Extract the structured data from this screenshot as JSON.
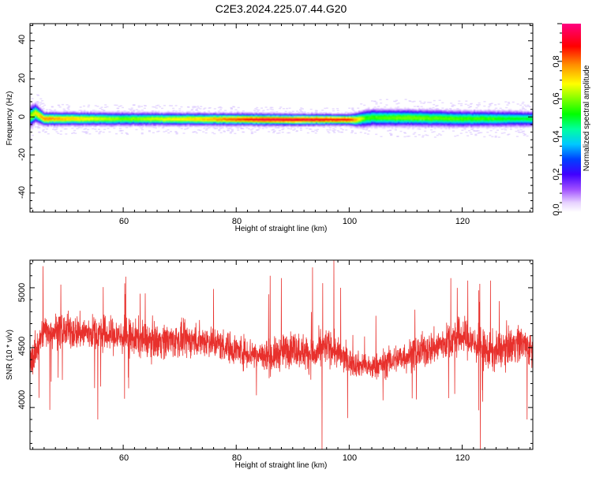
{
  "title": "C2E3.2024.225.07.44.G20",
  "chart_data": [
    {
      "type": "heatmap",
      "xlabel": "Height of straight line (km)",
      "ylabel": "Frequency (Hz)",
      "xlim": [
        43.5,
        132.5
      ],
      "ylim": [
        -50,
        49
      ],
      "xticks": [
        "60",
        "80",
        "100",
        "120"
      ],
      "yticks": [
        "40",
        "20",
        "0",
        "-20",
        "-40"
      ],
      "colorbar": {
        "label": "Normalized spectral amplitude",
        "range": [
          0,
          1
        ],
        "ticks": [
          "0.0",
          "0.2",
          "0.4",
          "0.6",
          "0.8"
        ]
      },
      "band": {
        "center_hz": [
          [
            43.5,
            0
          ],
          [
            44.5,
            2
          ],
          [
            46,
            -1
          ],
          [
            50,
            -1
          ],
          [
            70,
            -1.2
          ],
          [
            90,
            -1.5
          ],
          [
            101,
            -1.5
          ],
          [
            104,
            -0.5
          ],
          [
            110,
            -0.5
          ],
          [
            120,
            -1
          ],
          [
            132.5,
            -1
          ]
        ],
        "peak_amplitude": [
          [
            43.5,
            0.6
          ],
          [
            46,
            0.8
          ],
          [
            60,
            0.6
          ],
          [
            75,
            0.75
          ],
          [
            85,
            0.95
          ],
          [
            100,
            0.9
          ],
          [
            103,
            0.55
          ],
          [
            110,
            0.6
          ],
          [
            125,
            0.55
          ],
          [
            132.5,
            0.5
          ]
        ],
        "half_width_hz": [
          [
            43.5,
            5
          ],
          [
            46,
            3
          ],
          [
            60,
            3
          ],
          [
            100,
            2.5
          ],
          [
            103,
            4
          ],
          [
            132.5,
            3.5
          ]
        ]
      }
    },
    {
      "type": "line",
      "xlabel": "Height of straight line (km)",
      "ylabel": "SNR (10 * v/v)",
      "xlim": [
        43.5,
        132.5
      ],
      "ylim": [
        3650,
        5230
      ],
      "xticks": [
        "60",
        "80",
        "100",
        "120"
      ],
      "yticks": [
        "5000",
        "4500",
        "4000"
      ],
      "series_color": "#e8302c",
      "trend": [
        [
          43.5,
          4350
        ],
        [
          46,
          4650
        ],
        [
          55,
          4620
        ],
        [
          65,
          4560
        ],
        [
          75,
          4560
        ],
        [
          80,
          4480
        ],
        [
          86,
          4420
        ],
        [
          90,
          4500
        ],
        [
          94,
          4430
        ],
        [
          96,
          4520
        ],
        [
          100,
          4380
        ],
        [
          104,
          4330
        ],
        [
          108,
          4400
        ],
        [
          115,
          4500
        ],
        [
          120,
          4600
        ],
        [
          125,
          4450
        ],
        [
          130,
          4550
        ],
        [
          132.5,
          4480
        ]
      ],
      "amplitude": [
        [
          43.5,
          180
        ],
        [
          60,
          200
        ],
        [
          80,
          170
        ],
        [
          95,
          200
        ],
        [
          102,
          130
        ],
        [
          110,
          170
        ],
        [
          120,
          210
        ],
        [
          132.5,
          200
        ]
      ],
      "spikes": [
        [
          45.8,
          5180
        ],
        [
          47,
          3980
        ],
        [
          55.5,
          3900
        ],
        [
          63,
          4950
        ],
        [
          76,
          4990
        ],
        [
          86,
          5100
        ],
        [
          88,
          5080
        ],
        [
          93.5,
          5170
        ],
        [
          95.2,
          3650
        ],
        [
          97.3,
          5230
        ],
        [
          98.5,
          5000
        ],
        [
          106,
          4060
        ],
        [
          118,
          5080
        ],
        [
          121,
          5060
        ],
        [
          123.2,
          3650
        ],
        [
          125,
          5060
        ],
        [
          131.5,
          3900
        ]
      ],
      "sample_step": 0.03,
      "seed": 20240225
    }
  ]
}
